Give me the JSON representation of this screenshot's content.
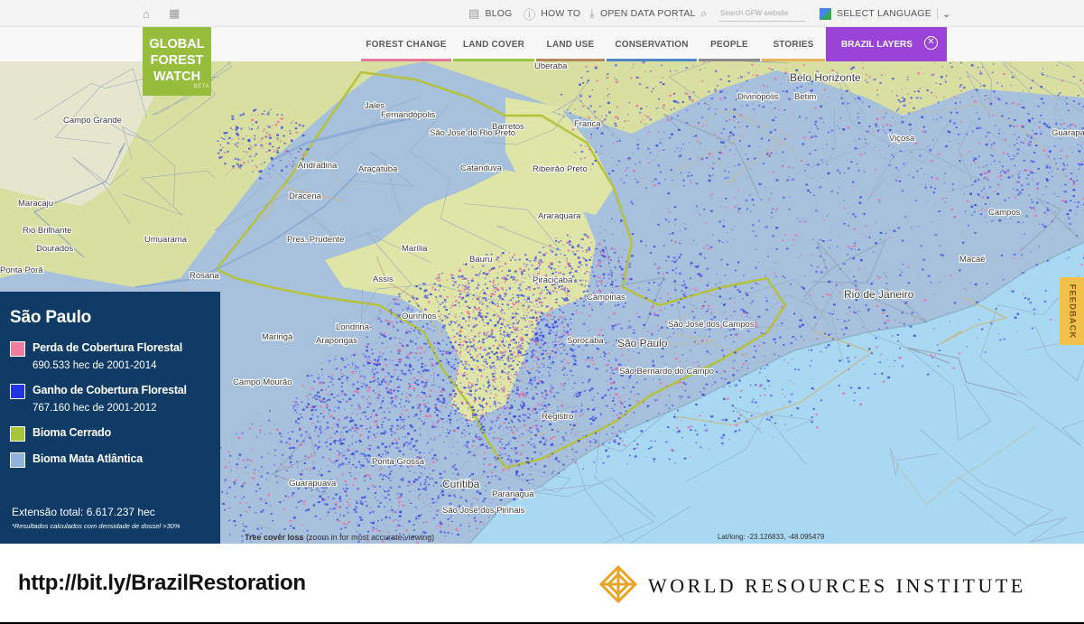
{
  "topbar": {
    "blog": "BLOG",
    "how_to": "HOW TO",
    "open_data": "OPEN DATA PORTAL",
    "search_placeholder": "Search GFW website",
    "language": "SELECT LANGUAGE",
    "icons": [
      "home-icon",
      "grid-icon",
      "blog-icon",
      "question-icon",
      "download-icon",
      "search-icon",
      "google-translate-icon",
      "chevron-down-icon"
    ]
  },
  "logo": {
    "line1": "GLOBAL",
    "line2": "FOREST",
    "line3": "WATCH",
    "beta": "BETA"
  },
  "nav": {
    "items": [
      {
        "label": "FOREST CHANGE",
        "color": "#e5799a"
      },
      {
        "label": "LAND COVER",
        "color": "#9ac341"
      },
      {
        "label": "LAND USE",
        "color": "#b4885a"
      },
      {
        "label": "CONSERVATION",
        "color": "#4e86c2"
      },
      {
        "label": "PEOPLE",
        "color": "#8a8a8a"
      },
      {
        "label": "STORIES",
        "color": "#e8b35a"
      }
    ],
    "active_tab": "BRAZIL LAYERS",
    "active_color": "#9b42d8"
  },
  "legend": {
    "title": "São Paulo",
    "items": [
      {
        "label": "Perda de Cobertura Florestal",
        "sub": "690.533 hec de 2001-2014",
        "color": "#f07ca3"
      },
      {
        "label": "Ganho de Cobertura Florestal",
        "sub": "767.160 hec de 2001-2012",
        "color": "#2233e6"
      },
      {
        "label": "Bioma Cerrado",
        "sub": "",
        "color": "#a5c63c"
      },
      {
        "label": "Bioma Mata Atlântica",
        "sub": "",
        "color": "#8fb5dc"
      }
    ],
    "total": "Extensão total: 6.617.237 hec",
    "note": "*Resultados calculados com densidade de dossel >30%"
  },
  "map": {
    "tree_cover_label": "Tree cover loss",
    "tree_cover_hint": "(zoom in for most accurate viewing)",
    "latlong": "Lat/long: -23.126833, -48.095479",
    "feedback": "FEEDBACK",
    "places": [
      "Uberaba",
      "Belo Horizonte",
      "Betim",
      "Divinópolis",
      "Campo Grande",
      "Jales",
      "Fernandópolis",
      "São José do Rio Preto",
      "Barretos",
      "Franca",
      "Andradina",
      "Araçatuba",
      "Catanduva",
      "Ribeirão Preto",
      "Dracena",
      "Maracaju",
      "Rio Brilhante",
      "Dourados",
      "Pres. Prudente",
      "Marília",
      "Araraquara",
      "Ponta Porã",
      "Rosana",
      "Assis",
      "Bauru",
      "Piracicaba",
      "Campinas",
      "Ourinhos",
      "Londrina",
      "Arapongas",
      "Maringá",
      "Campo Mourão",
      "São Paulo",
      "Sorocaba",
      "São José dos Campos",
      "São Bernardo do Campo",
      "Registro",
      "Ponta Grossa",
      "Guarapuava",
      "Curitiba",
      "Paranaguá",
      "São José dos Pinhais",
      "Rio de Janeiro",
      "Campos",
      "Macaé",
      "Viçosa",
      "Guarapari",
      "Umuarama"
    ]
  },
  "footer": {
    "url": "http://bit.ly/BrazilRestoration",
    "org": "WORLD RESOURCES INSTITUTE"
  }
}
